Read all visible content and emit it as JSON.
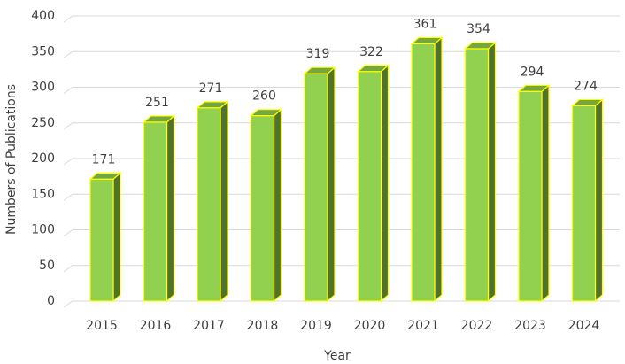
{
  "chart_data": {
    "type": "bar3d",
    "x_label": "Year",
    "y_label": "Numbers of Publications",
    "categories": [
      "2015",
      "2016",
      "2017",
      "2018",
      "2019",
      "2020",
      "2021",
      "2022",
      "2023",
      "2024"
    ],
    "values": [
      171,
      251,
      271,
      260,
      319,
      322,
      361,
      354,
      294,
      274
    ],
    "color": "#92d050",
    "ylim": [
      0,
      400
    ],
    "yticks": [
      0,
      50,
      100,
      150,
      200,
      250,
      300,
      350,
      400
    ],
    "grid": true
  }
}
